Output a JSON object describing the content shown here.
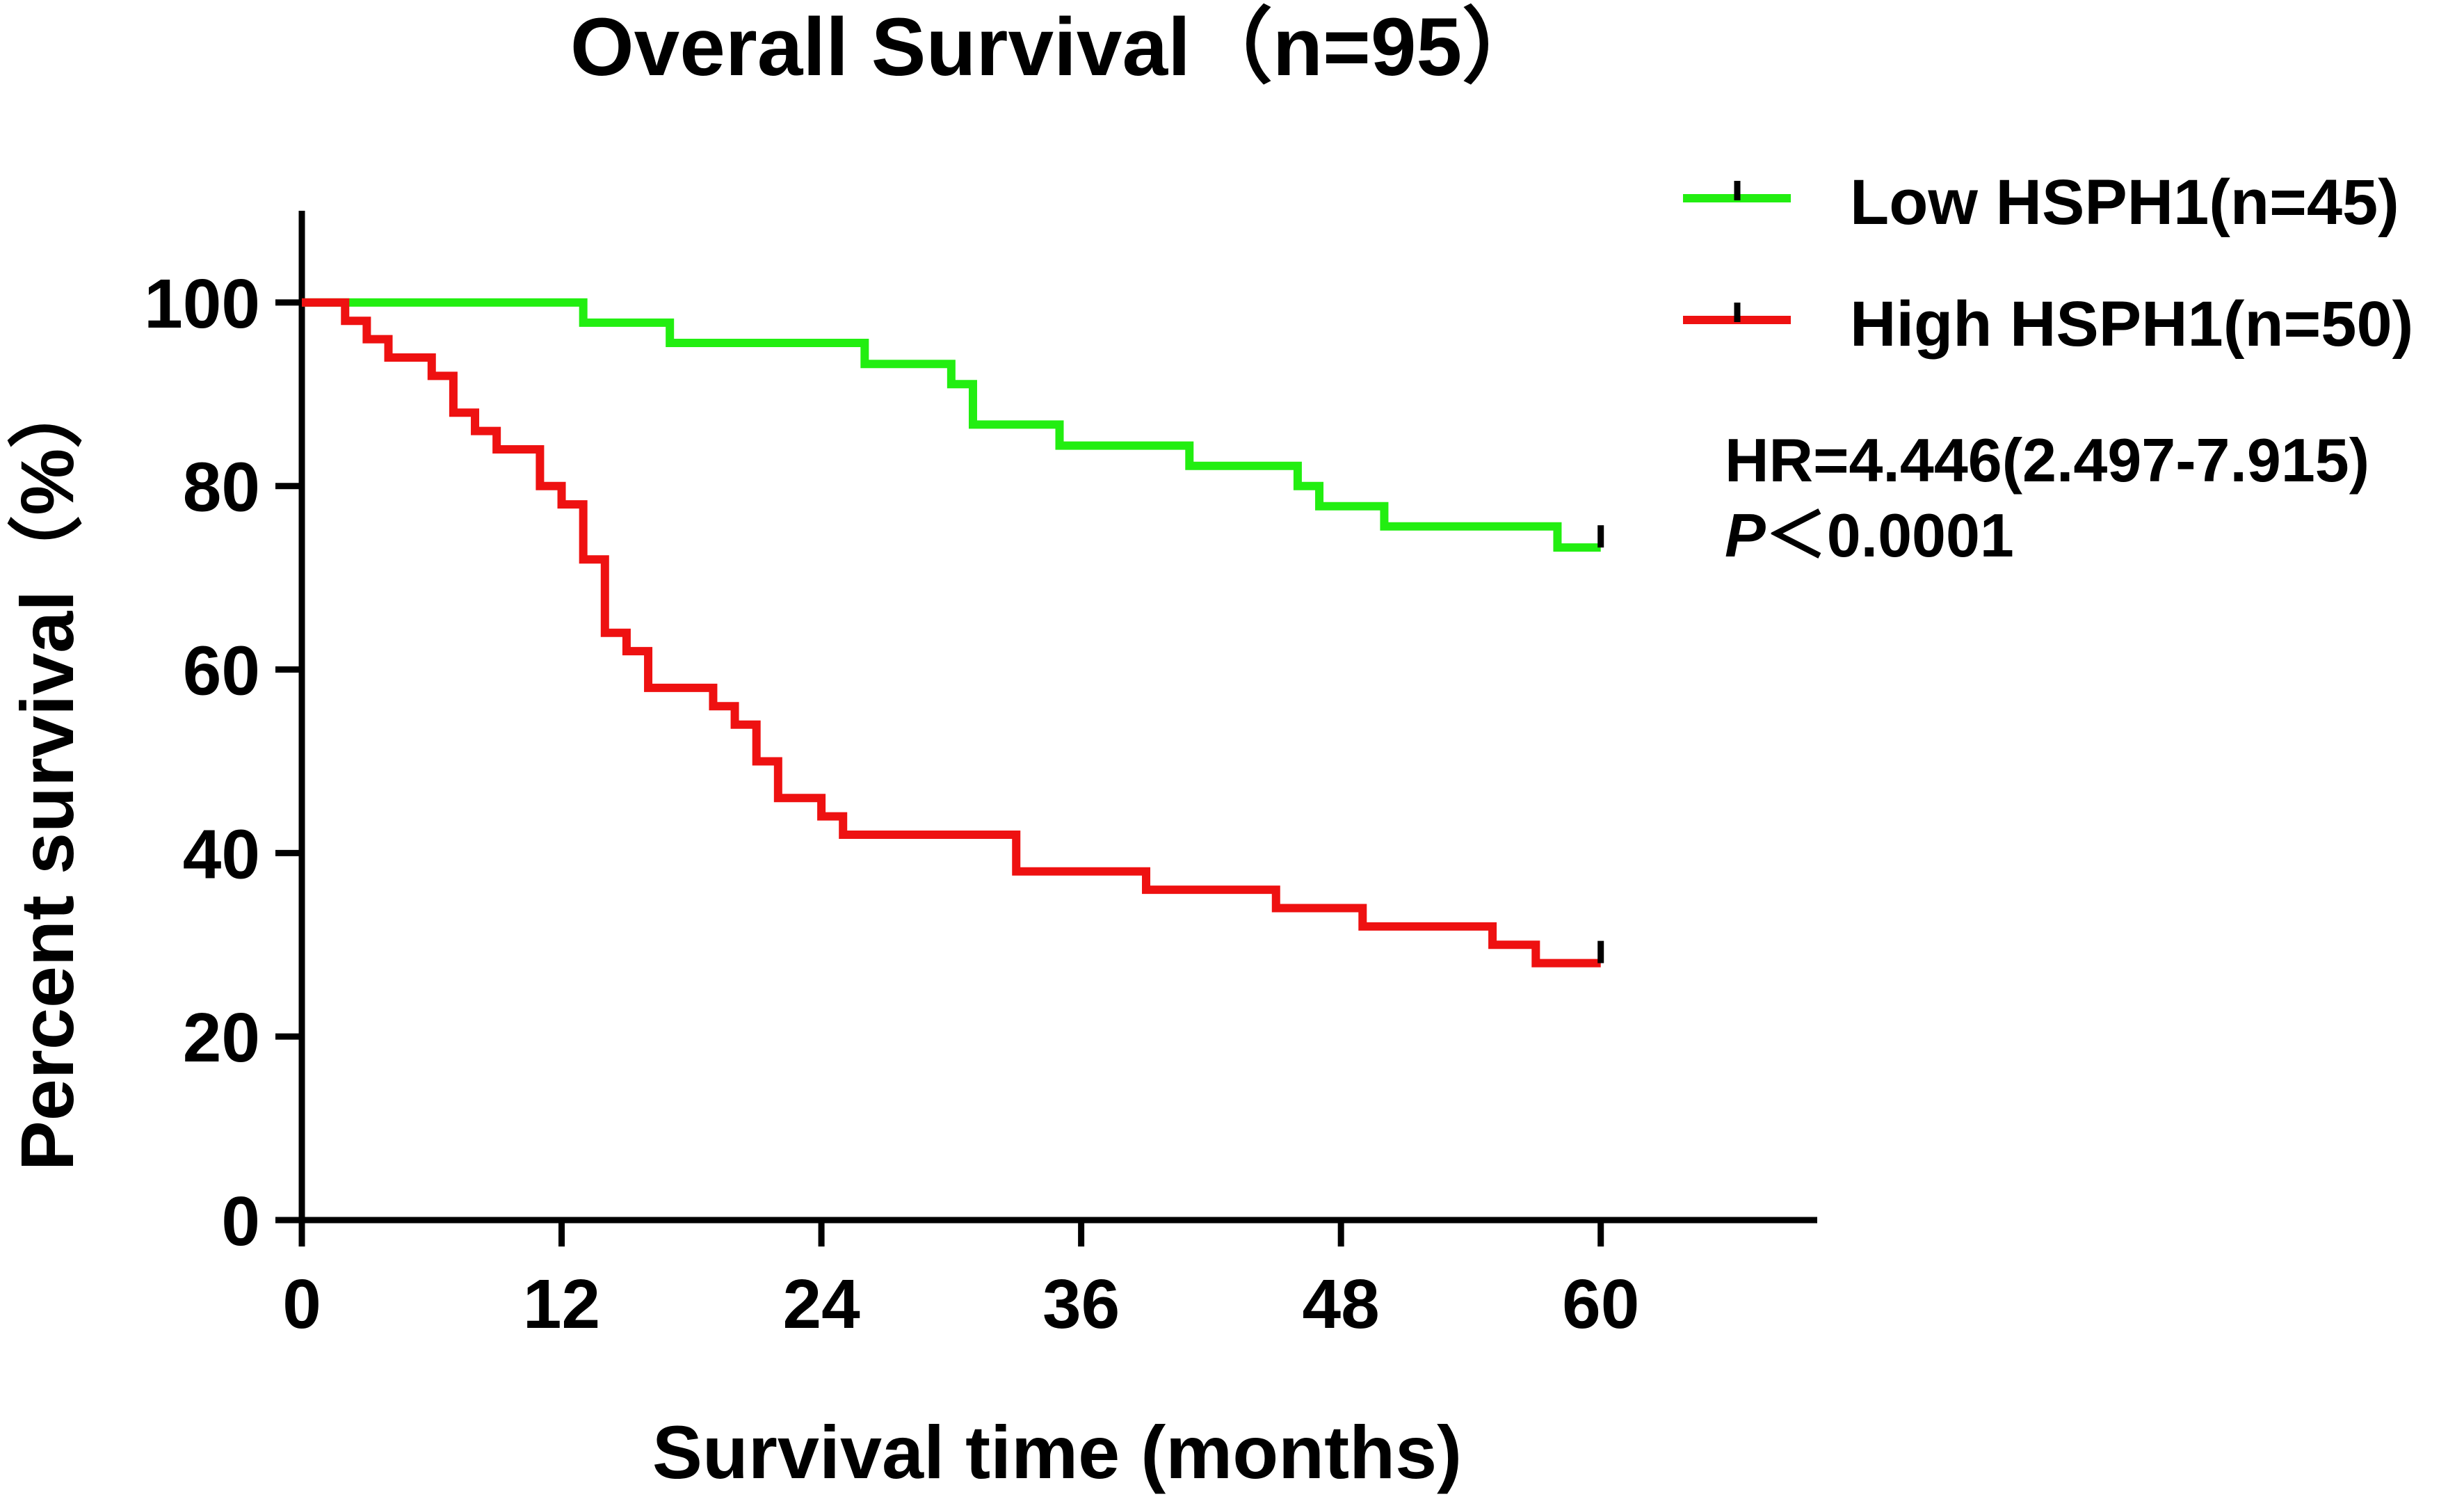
{
  "chart_data": {
    "type": "line",
    "subtype": "kaplan-meier step",
    "title": "Overall Survival（n=95）",
    "xlabel": "Survival time (months)",
    "ylabel": "Percent survival（%）",
    "xlim": [
      0,
      70
    ],
    "ylim": [
      0,
      110
    ],
    "x_ticks": [
      0,
      12,
      24,
      36,
      48,
      60
    ],
    "y_ticks": [
      0,
      20,
      40,
      60,
      80,
      100
    ],
    "x_tick_labels": [
      "0",
      "12",
      "24",
      "36",
      "48",
      "60"
    ],
    "y_tick_labels": [
      "0",
      "20",
      "40",
      "60",
      "80",
      "100"
    ],
    "legend_position": "top-right",
    "annotations": {
      "hr": "HR=4.446(2.497-7.915)",
      "p_label": "P",
      "p_value": "＜0.0001"
    },
    "series": [
      {
        "name": "Low HSPH1(n=45)",
        "color": "#22ee11",
        "censor_time": 60,
        "steps": [
          [
            0,
            100
          ],
          [
            13,
            97.8
          ],
          [
            17,
            95.6
          ],
          [
            26,
            93.3
          ],
          [
            30,
            91.1
          ],
          [
            31,
            86.7
          ],
          [
            35,
            84.4
          ],
          [
            41,
            82.2
          ],
          [
            46,
            80.0
          ],
          [
            47,
            77.8
          ],
          [
            50,
            75.6
          ],
          [
            58,
            73.3
          ]
        ],
        "end_x": 60
      },
      {
        "name": "High HSPH1(n=50)",
        "color": "#ee1111",
        "censor_time": 60,
        "steps": [
          [
            0,
            100
          ],
          [
            2,
            98
          ],
          [
            3,
            96
          ],
          [
            4,
            94
          ],
          [
            6,
            92
          ],
          [
            7,
            88
          ],
          [
            8,
            86
          ],
          [
            9,
            84
          ],
          [
            11,
            80
          ],
          [
            12,
            78
          ],
          [
            13,
            72
          ],
          [
            14,
            64
          ],
          [
            15,
            62
          ],
          [
            16,
            58
          ],
          [
            19,
            56
          ],
          [
            20,
            54
          ],
          [
            21,
            50
          ],
          [
            22,
            46
          ],
          [
            24,
            44
          ],
          [
            25,
            42
          ],
          [
            33,
            38
          ],
          [
            39,
            36
          ],
          [
            45,
            34
          ],
          [
            49,
            32
          ],
          [
            55,
            30
          ],
          [
            57,
            28
          ]
        ],
        "end_x": 60
      }
    ]
  }
}
